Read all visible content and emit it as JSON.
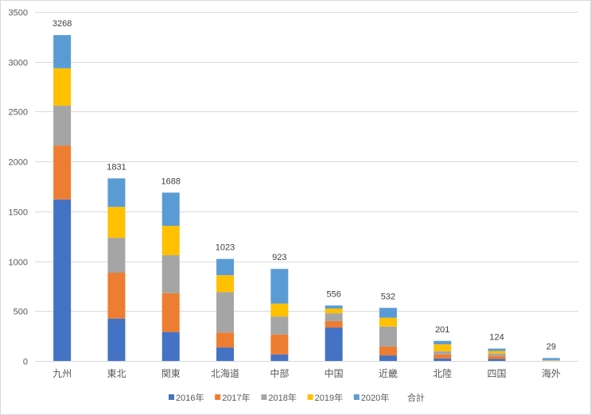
{
  "chart_data": {
    "type": "bar",
    "stacked": true,
    "title": "",
    "xlabel": "",
    "ylabel": "",
    "categories": [
      "九州",
      "東北",
      "関東",
      "北海道",
      "中部",
      "中国",
      "近畿",
      "北陸",
      "四国",
      "海外"
    ],
    "series": [
      {
        "name": "2016年",
        "color": "#4472C4",
        "values": [
          1620,
          425,
          290,
          135,
          65,
          335,
          55,
          25,
          20,
          0
        ]
      },
      {
        "name": "2017年",
        "color": "#ED7D31",
        "values": [
          540,
          460,
          390,
          150,
          200,
          65,
          90,
          40,
          30,
          2
        ]
      },
      {
        "name": "2018年",
        "color": "#A5A5A5",
        "values": [
          400,
          350,
          380,
          405,
          180,
          78,
          200,
          32,
          25,
          4
        ]
      },
      {
        "name": "2019年",
        "color": "#FFC000",
        "values": [
          375,
          310,
          295,
          170,
          130,
          48,
          88,
          70,
          25,
          3
        ]
      },
      {
        "name": "2020年",
        "color": "#5B9BD5",
        "values": [
          333,
          286,
          333,
          163,
          348,
          30,
          99,
          34,
          24,
          20
        ]
      }
    ],
    "totals": {
      "name": "合計",
      "values": [
        3268,
        1831,
        1688,
        1023,
        923,
        556,
        532,
        201,
        124,
        29
      ]
    },
    "ylim": [
      0,
      3500
    ],
    "yticks": [
      0,
      500,
      1000,
      1500,
      2000,
      2500,
      3000,
      3500
    ],
    "grid": true,
    "legend": "bottom",
    "colors": {
      "grid": "#D9D9D9",
      "text": "#595959",
      "border": "#D9D9D9"
    }
  }
}
